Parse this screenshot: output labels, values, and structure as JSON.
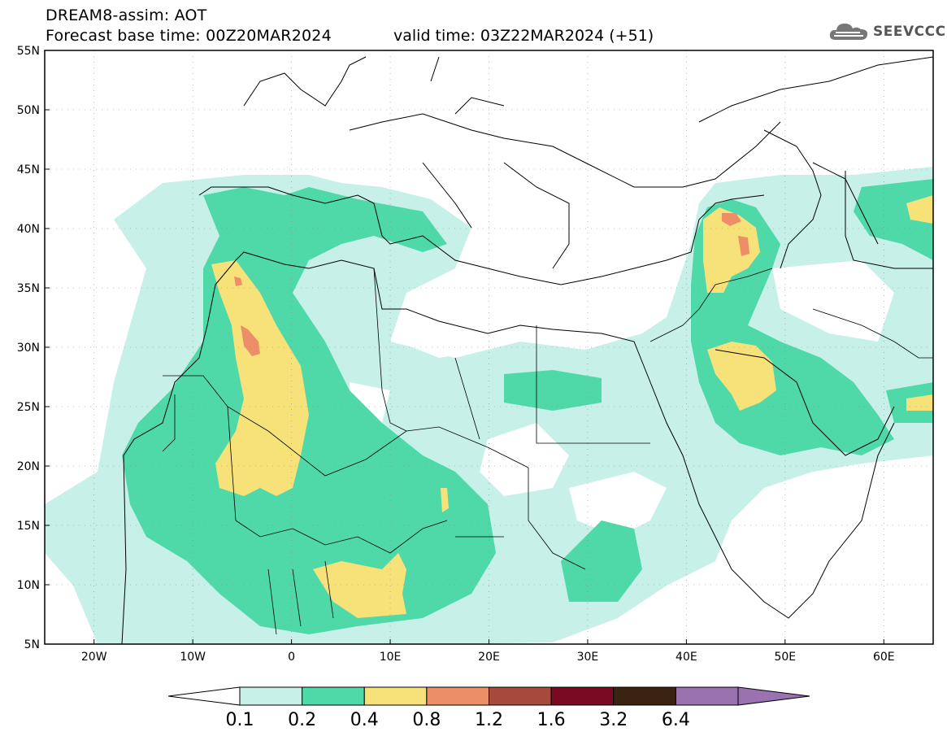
{
  "header": {
    "title": "DREAM8-assim: AOT",
    "base_time": "Forecast base time: 00Z20MAR2024",
    "valid_time": "valid time: 03Z22MAR2024 (+51)",
    "logo_text": "SEEVCCC"
  },
  "map": {
    "lon_labels": [
      "20W",
      "10W",
      "0",
      "10E",
      "20E",
      "30E",
      "40E",
      "50E",
      "60E"
    ],
    "lat_labels": [
      "55N",
      "50N",
      "45N",
      "40N",
      "35N",
      "30N",
      "25N",
      "20N",
      "15N",
      "10N",
      "5N"
    ],
    "lon_range": [
      -25,
      65
    ],
    "lat_range": [
      5,
      55
    ],
    "grid": true
  },
  "legend": {
    "labels": [
      "0.1",
      "0.2",
      "0.4",
      "0.8",
      "1.2",
      "1.6",
      "3.2",
      "6.4"
    ],
    "colors": [
      "#ffffff",
      "#c6f0e8",
      "#4fd9a8",
      "#f7e27a",
      "#ec8e68",
      "#a64b3c",
      "#7a0a23",
      "#3a2410",
      "#9a72b0"
    ]
  }
}
